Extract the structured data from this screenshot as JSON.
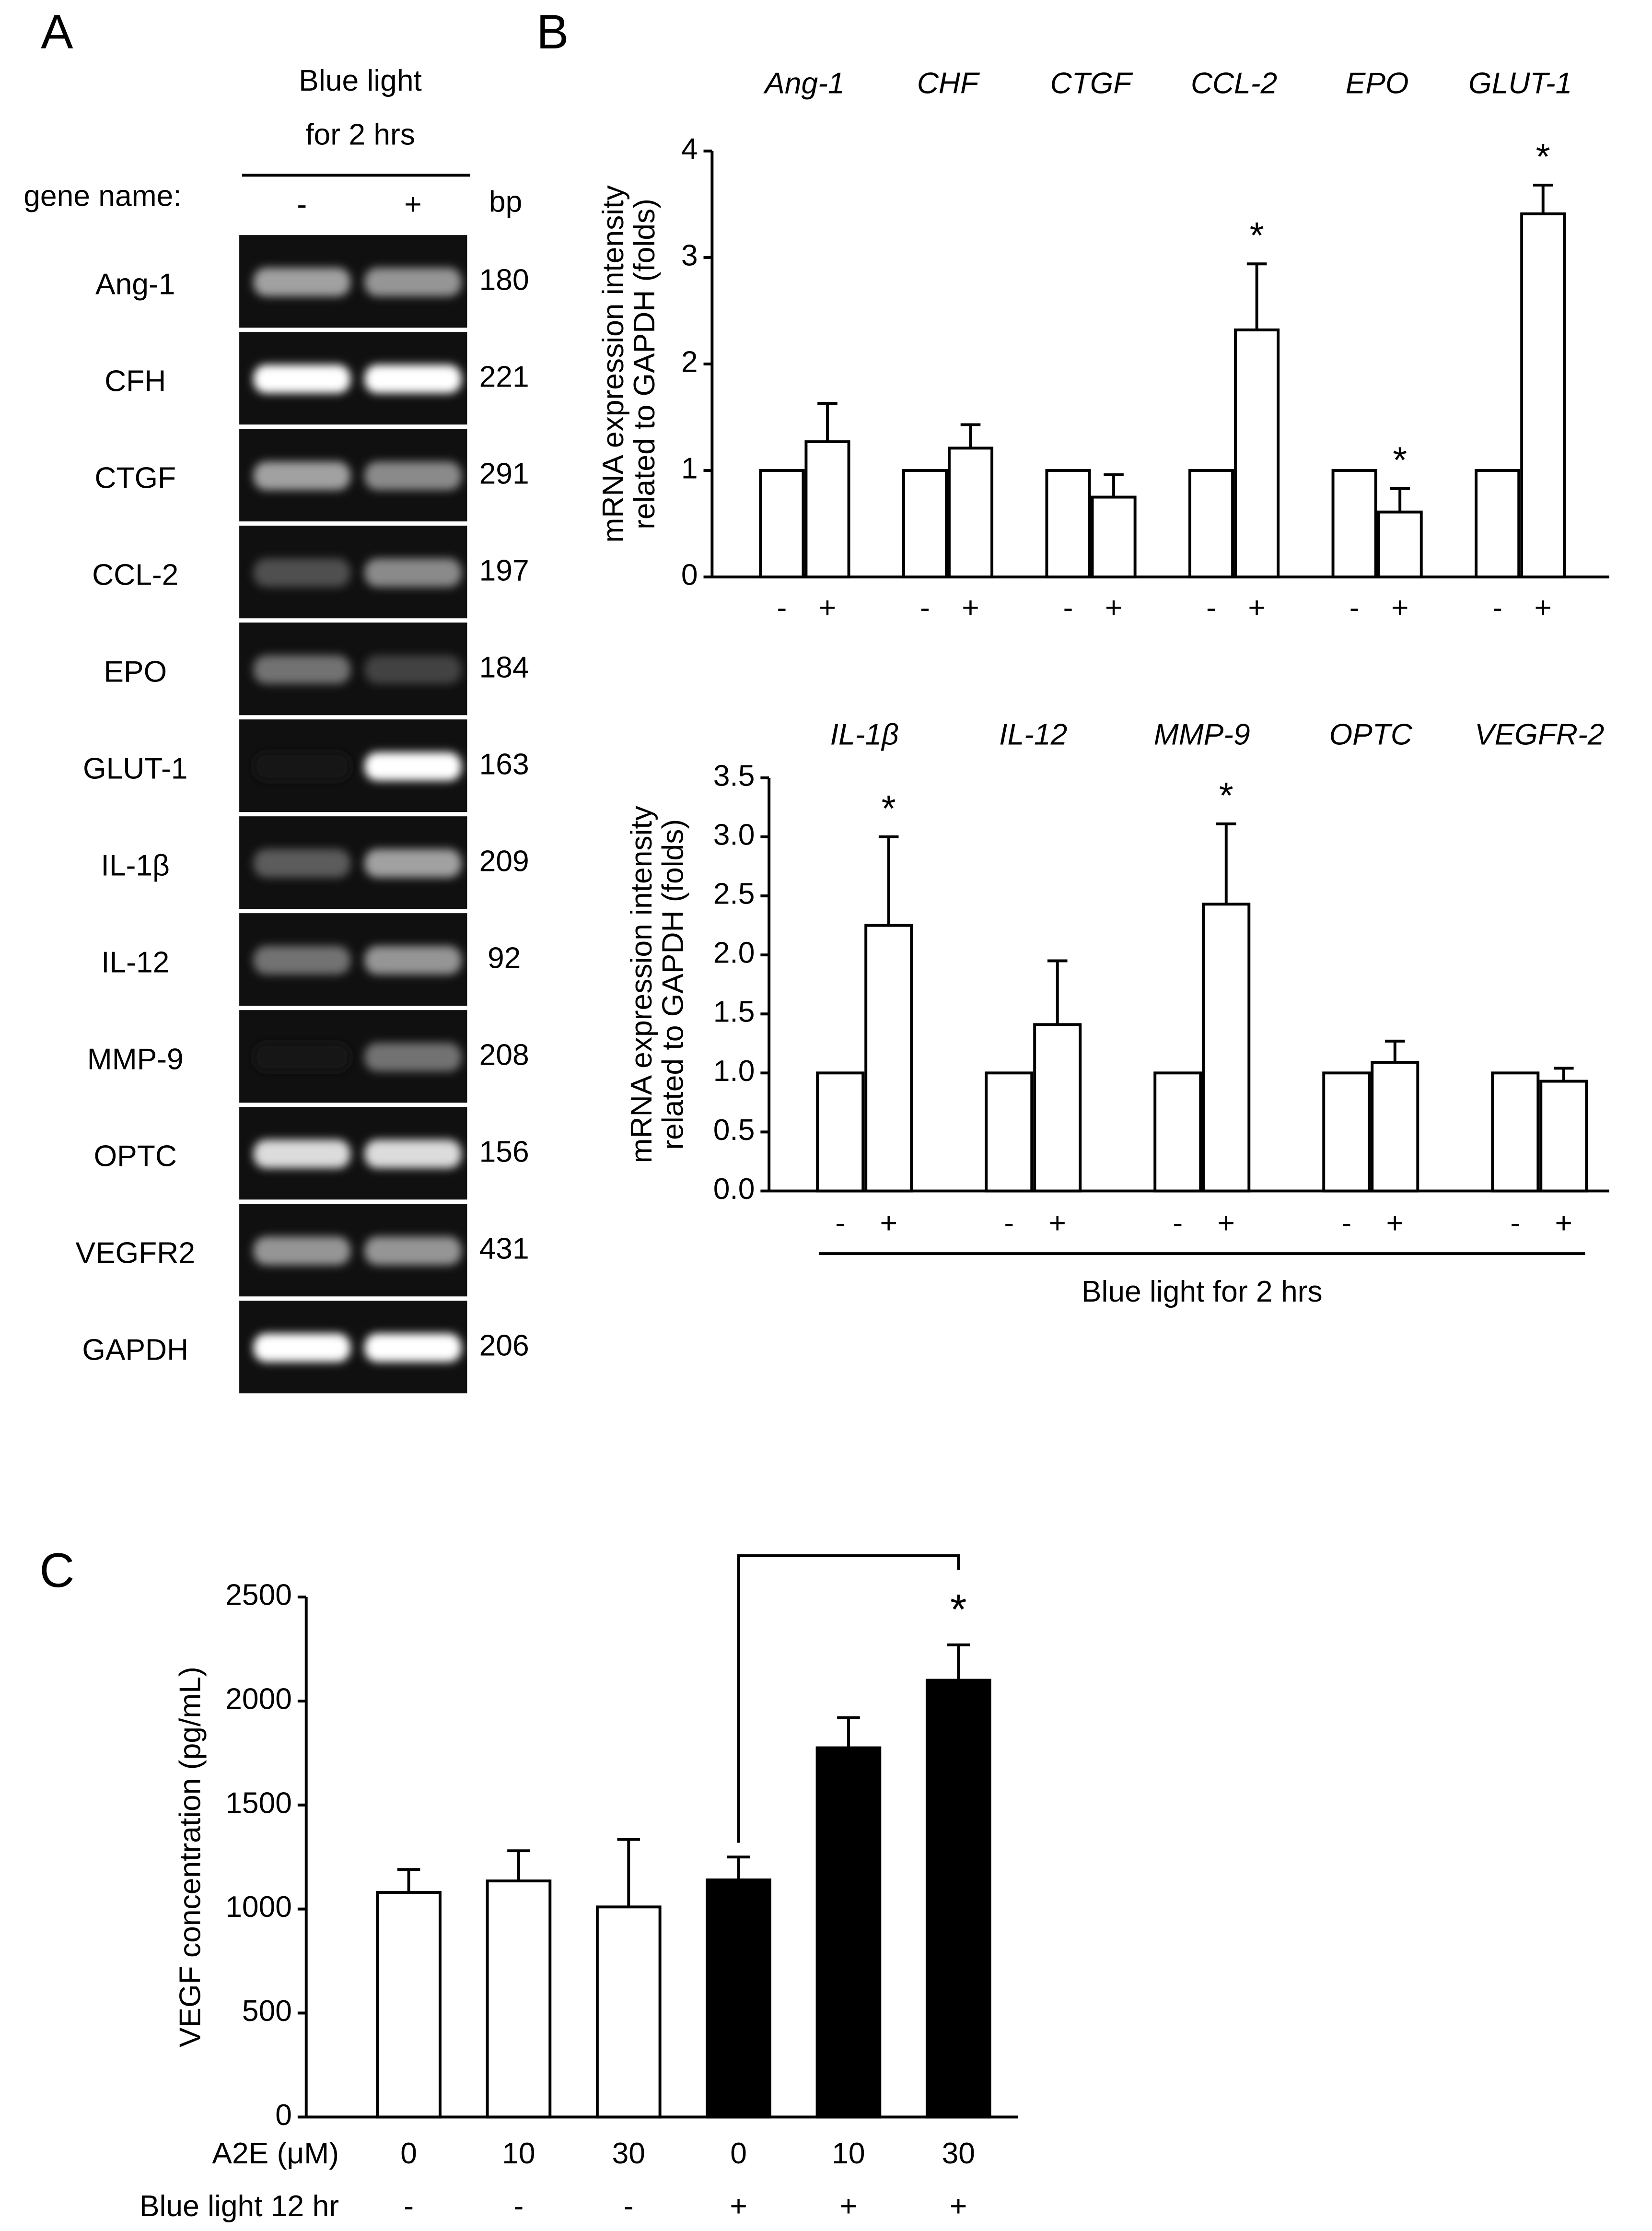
{
  "chart_data": [
    {
      "type": "gel",
      "panel": "A",
      "header": [
        "Blue light",
        "for 2 hrs"
      ],
      "row_label_title": "gene name:",
      "lanes": [
        "-",
        "+"
      ],
      "size_unit": "bp",
      "genes": [
        "Ang-1",
        "CFH",
        "CTGF",
        "CCL-2",
        "EPO",
        "GLUT-1",
        "IL-1β",
        "IL-12",
        "MMP-9",
        "OPTC",
        "VEGFR2",
        "GAPDH"
      ],
      "sizes": [
        180,
        221,
        291,
        197,
        184,
        163,
        209,
        92,
        208,
        156,
        431,
        206
      ],
      "band_intensity": [
        [
          0.6,
          0.55
        ],
        [
          1,
          1
        ],
        [
          0.6,
          0.5
        ],
        [
          0.25,
          0.5
        ],
        [
          0.4,
          0.2
        ],
        [
          0,
          1
        ],
        [
          0.3,
          0.6
        ],
        [
          0.4,
          0.55
        ],
        [
          0,
          0.4
        ],
        [
          0.85,
          0.85
        ],
        [
          0.55,
          0.55
        ],
        [
          1,
          1
        ]
      ]
    },
    {
      "type": "grouped_bar",
      "panel": "B",
      "categories": [
        "Ang-1",
        "CHF",
        "CTGF",
        "CCL-2",
        "EPO",
        "GLUT-1"
      ],
      "ylabel": [
        "mRNA expression intensity",
        "related to GAPDH (folds)"
      ],
      "ylim": [
        0,
        4
      ],
      "yticks": [
        0,
        1,
        2,
        3,
        4
      ],
      "series": [
        {
          "name": "-",
          "color": "#ffffff",
          "values": [
            1,
            1,
            1,
            1,
            1,
            1
          ]
        },
        {
          "name": "+",
          "color": "#ffffff",
          "values": [
            1.27,
            1.21,
            0.75,
            2.32,
            0.61,
            3.41
          ],
          "errors": [
            0.36,
            0.22,
            0.21,
            0.62,
            0.22,
            0.27
          ]
        }
      ],
      "significant": [
        false,
        false,
        false,
        true,
        true,
        true
      ],
      "significance_label": "*"
    },
    {
      "type": "grouped_bar",
      "categories": [
        "IL-1β",
        "IL-12",
        "MMP-9",
        "OPTC",
        "VEGFR-2"
      ],
      "ylabel": [
        "mRNA expression intensity",
        "related to GAPDH (folds)"
      ],
      "xlabel": "Blue light for 2 hrs",
      "ylim": [
        0,
        3.5
      ],
      "yticks": [
        {
          "value": 0,
          "label": "0.0"
        },
        0.5,
        {
          "value": 1,
          "label": "1.0"
        },
        1.5,
        {
          "value": 2,
          "label": "2.0"
        },
        2.5,
        {
          "value": 3,
          "label": "3.0"
        },
        3.5
      ],
      "series": [
        {
          "name": "-",
          "color": "#ffffff",
          "values": [
            1,
            1,
            1,
            1,
            1
          ]
        },
        {
          "name": "+",
          "color": "#ffffff",
          "values": [
            2.25,
            1.41,
            2.43,
            1.09,
            0.93
          ],
          "errors": [
            0.75,
            0.54,
            0.68,
            0.18,
            0.11
          ]
        }
      ],
      "significant": [
        true,
        false,
        true,
        false,
        false
      ],
      "significance_label": "*"
    },
    {
      "type": "bar",
      "panel": "C",
      "ylabel": "VEGF concentration (pg/mL)",
      "ylim": [
        0,
        2500
      ],
      "yticks": [
        0,
        500,
        1000,
        1500,
        2000,
        2500
      ],
      "rows": [
        {
          "name": "A2E (μM)",
          "labels": [
            "0",
            "10",
            "30",
            "0",
            "10",
            "30"
          ]
        },
        {
          "name": "Blue light 12 hr",
          "labels": [
            "-",
            "-",
            "-",
            "+",
            "+",
            "+"
          ]
        }
      ],
      "values": [
        1080,
        1135,
        1010,
        1140,
        1775,
        2100
      ],
      "errors": [
        110,
        145,
        325,
        110,
        145,
        170
      ],
      "colors": [
        "#ffffff",
        "#ffffff",
        "#ffffff",
        "#000000",
        "#000000",
        "#000000"
      ],
      "significant": [
        false,
        false,
        false,
        false,
        false,
        true
      ],
      "significance_label": "*",
      "comparison": [
        3,
        5
      ]
    }
  ]
}
